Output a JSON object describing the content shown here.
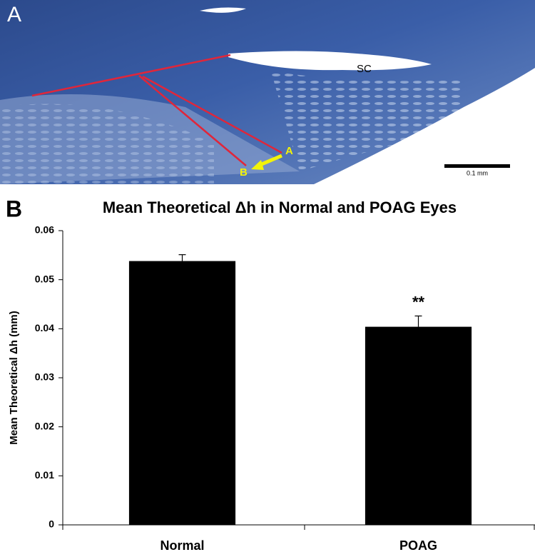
{
  "panel_a": {
    "label": "A",
    "lumen_label": "SC",
    "point_a": "A",
    "point_b": "B",
    "scale_bar": "0.1 mm"
  },
  "chart_data": {
    "type": "bar",
    "panel_label": "B",
    "title": "Mean Theoretical Δh in Normal and POAG Eyes",
    "y_label": "Mean Theoretical Δh (mm)",
    "categories": [
      "Normal",
      "POAG"
    ],
    "values": [
      0.0538,
      0.0404
    ],
    "errors": [
      0.0013,
      0.0022
    ],
    "annotation": "**",
    "color": "#000000",
    "ylim": [
      0,
      0.06
    ],
    "yticks": [
      0,
      0.01,
      0.02,
      0.03,
      0.04,
      0.05,
      0.06
    ],
    "grid": false
  }
}
